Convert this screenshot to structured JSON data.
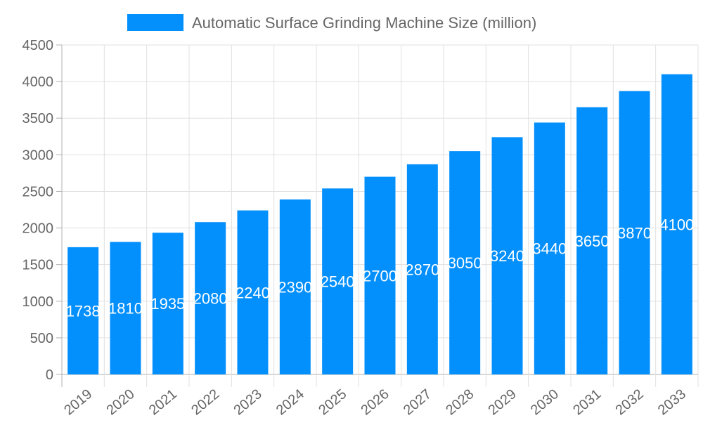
{
  "chart_data": {
    "type": "bar",
    "title": "",
    "xlabel": "",
    "ylabel": "",
    "categories": [
      "2019",
      "2020",
      "2021",
      "2022",
      "2023",
      "2024",
      "2025",
      "2026",
      "2027",
      "2028",
      "2029",
      "2030",
      "2031",
      "2032",
      "2033"
    ],
    "series": [
      {
        "name": "Automatic Surface Grinding Machine Size (million)",
        "values": [
          1738,
          1810,
          1935,
          2080,
          2240,
          2390,
          2540,
          2700,
          2870,
          3050,
          3240,
          3440,
          3650,
          3870,
          4100
        ]
      }
    ],
    "ylim": [
      0,
      4500
    ],
    "yticks": [
      0,
      500,
      1000,
      1500,
      2000,
      2500,
      3000,
      3500,
      4000,
      4500
    ],
    "grid": true,
    "legend_position": "top",
    "data_labels": true,
    "colors": {
      "bar": "#038ffc",
      "grid": "#e0e0e0",
      "axis": "#b0b0b0",
      "text": "#666666",
      "data_label": "#ffffff"
    }
  }
}
